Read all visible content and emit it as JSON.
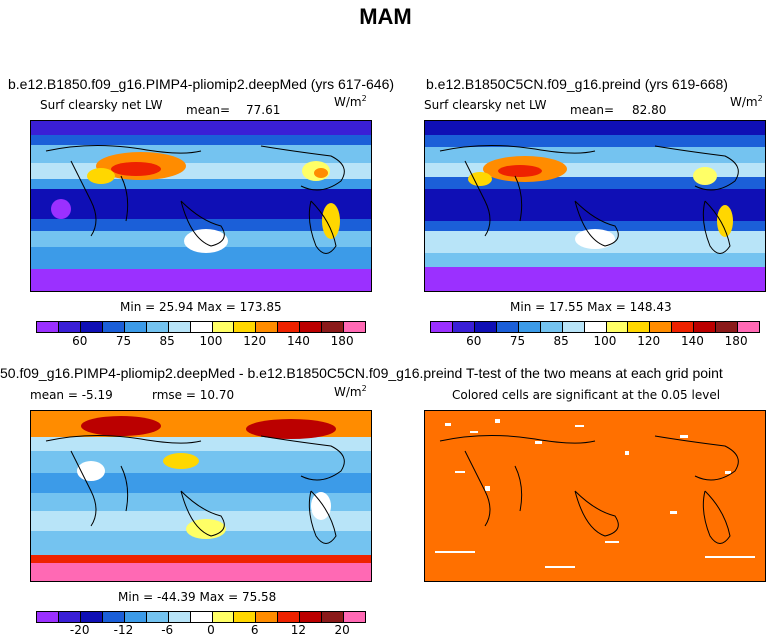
{
  "figure": {
    "title": "MAM"
  },
  "panels": [
    {
      "title": "b.e12.B1850.f09_g16.PIMP4-pliomip2.deepMed (yrs 617-646)",
      "variable": "Surf clearsky net LW",
      "stat_label": "mean=",
      "stat_value": "77.61",
      "units_base": "W/m",
      "units_exp": "2",
      "minmax": "Min =   25.94 Max =  173.85",
      "colorbar_labels": [
        "60",
        "75",
        "85",
        "100",
        "120",
        "140",
        "180"
      ]
    },
    {
      "title": "b.e12.B1850C5CN.f09_g16.preind (yrs 619-668)",
      "variable": "Surf clearsky net LW",
      "stat_label": "mean=",
      "stat_value": "82.80",
      "units_base": "W/m",
      "units_exp": "2",
      "minmax": "Min =   17.55 Max =  148.43",
      "colorbar_labels": [
        "60",
        "75",
        "85",
        "100",
        "120",
        "140",
        "180"
      ]
    },
    {
      "title": "50.f09_g16.PIMP4-pliomip2.deepMed - b.e12.B1850C5CN.f09_g16.preind",
      "mean_text": "mean =  -5.19",
      "rmse_text": "rmse =  10.70",
      "units_base": "W/m",
      "units_exp": "2",
      "minmax": "Min = -44.39 Max =  75.58",
      "colorbar_labels": [
        "-20",
        "-12",
        "-6",
        "0",
        "6",
        "12",
        "20"
      ]
    },
    {
      "title": "T-test of the two means at each grid point",
      "subtitle": "Colored cells are significant at the 0.05 level"
    }
  ],
  "colors": {
    "abs_scale": [
      "#9b30ff",
      "#3a1fd6",
      "#0f0fb5",
      "#1b5fd8",
      "#3c9be8",
      "#74c3f0",
      "#b8e4f8",
      "#ffffff",
      "#ffff66",
      "#ffd700",
      "#ff8c00",
      "#ee2200",
      "#bb0000",
      "#8b1a1a",
      "#ff69b4"
    ],
    "diff_scale": [
      "#9b30ff",
      "#3a1fd6",
      "#0f0fb5",
      "#1b5fd8",
      "#3c9be8",
      "#74c3f0",
      "#b8e4f8",
      "#ffffff",
      "#ffff66",
      "#ffd700",
      "#ff8c00",
      "#ee2200",
      "#bb0000",
      "#8b1a1a",
      "#ff69b4"
    ],
    "ttest_fill": "#ff7000"
  },
  "chart_data": [
    {
      "type": "heatmap",
      "title": "b.e12.B1850.f09_g16.PIMP4-pliomip2.deepMed (yrs 617-646)",
      "variable": "Surf clearsky net LW",
      "units": "W/m2",
      "mean": 77.61,
      "min": 25.94,
      "max": 173.85,
      "colorbar_levels": [
        60,
        75,
        85,
        100,
        120,
        140,
        180
      ]
    },
    {
      "type": "heatmap",
      "title": "b.e12.B1850C5CN.f09_g16.preind (yrs 619-668)",
      "variable": "Surf clearsky net LW",
      "units": "W/m2",
      "mean": 82.8,
      "min": 17.55,
      "max": 148.43,
      "colorbar_levels": [
        60,
        75,
        85,
        100,
        120,
        140,
        180
      ]
    },
    {
      "type": "heatmap",
      "title": "50.f09_g16.PIMP4-pliomip2.deepMed - b.e12.B1850C5CN.f09_g16.preind",
      "units": "W/m2",
      "mean": -5.19,
      "rmse": 10.7,
      "min": -44.39,
      "max": 75.58,
      "colorbar_levels": [
        -20,
        -12,
        -6,
        0,
        6,
        12,
        20
      ]
    },
    {
      "type": "heatmap",
      "title": "T-test of the two means at each grid point",
      "note": "Colored cells are significant at the 0.05 level"
    }
  ]
}
